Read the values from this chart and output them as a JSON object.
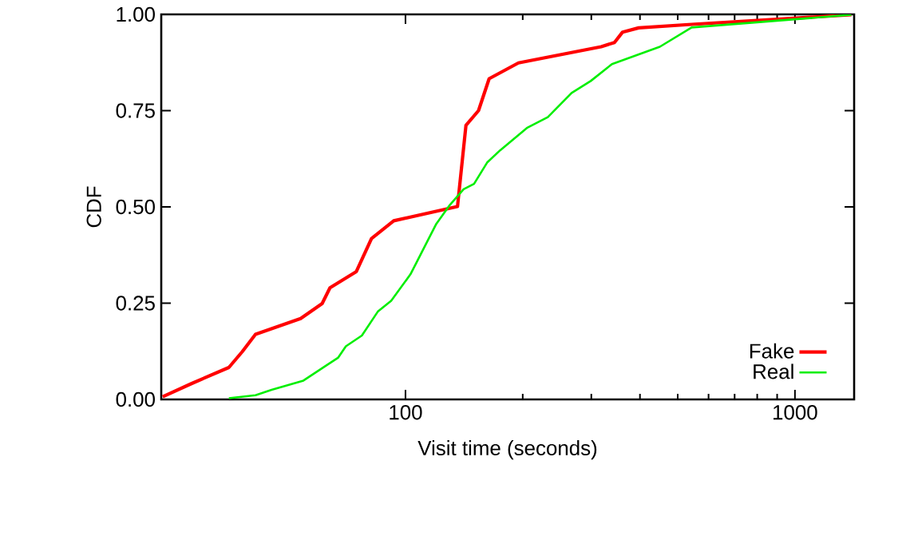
{
  "chart_data": {
    "type": "line",
    "xlabel": "Visit time (seconds)",
    "ylabel": "CDF",
    "log": "x",
    "xlim": [
      23.6,
      1419
    ],
    "xticks": [
      100,
      1000
    ],
    "ylim": [
      0,
      1
    ],
    "yticks": [
      {
        "value": 0,
        "label": "0.00"
      },
      {
        "value": 0.25,
        "label": "0.25"
      },
      {
        "value": 0.5,
        "label": "0.50"
      },
      {
        "value": 0.75,
        "label": "0.75"
      },
      {
        "value": 1,
        "label": "1.00"
      }
    ],
    "legend": "bottom right",
    "grid": false,
    "marker": "none",
    "line_style": "solid",
    "series": [
      {
        "name": "Fake",
        "color": "#ff0000",
        "x": [
          23.8,
          28.2,
          35.2,
          38.1,
          41.2,
          53.8,
          61.1,
          64.0,
          74.8,
          81.8,
          93.3,
          136,
          143,
          154,
          164,
          195,
          318,
          344,
          361,
          397,
          543,
          1396
        ],
        "values": [
          0.007,
          0.041,
          0.083,
          0.124,
          0.169,
          0.21,
          0.249,
          0.29,
          0.332,
          0.418,
          0.464,
          0.501,
          0.712,
          0.75,
          0.833,
          0.874,
          0.916,
          0.927,
          0.954,
          0.965,
          0.974,
          0.999
        ]
      },
      {
        "name": "Real",
        "color": "#00ee00",
        "x": [
          35.2,
          41.2,
          45.3,
          54.7,
          63.0,
          67.1,
          70.3,
          77.3,
          84.9,
          91.9,
          103,
          120,
          130,
          141,
          150,
          162,
          175,
          205,
          232,
          267,
          299,
          339,
          450,
          543,
          1396
        ],
        "values": [
          0.003,
          0.011,
          0.025,
          0.049,
          0.09,
          0.108,
          0.138,
          0.166,
          0.228,
          0.256,
          0.325,
          0.456,
          0.505,
          0.546,
          0.56,
          0.615,
          0.647,
          0.705,
          0.733,
          0.796,
          0.827,
          0.871,
          0.916,
          0.966,
          0.999
        ]
      }
    ]
  }
}
